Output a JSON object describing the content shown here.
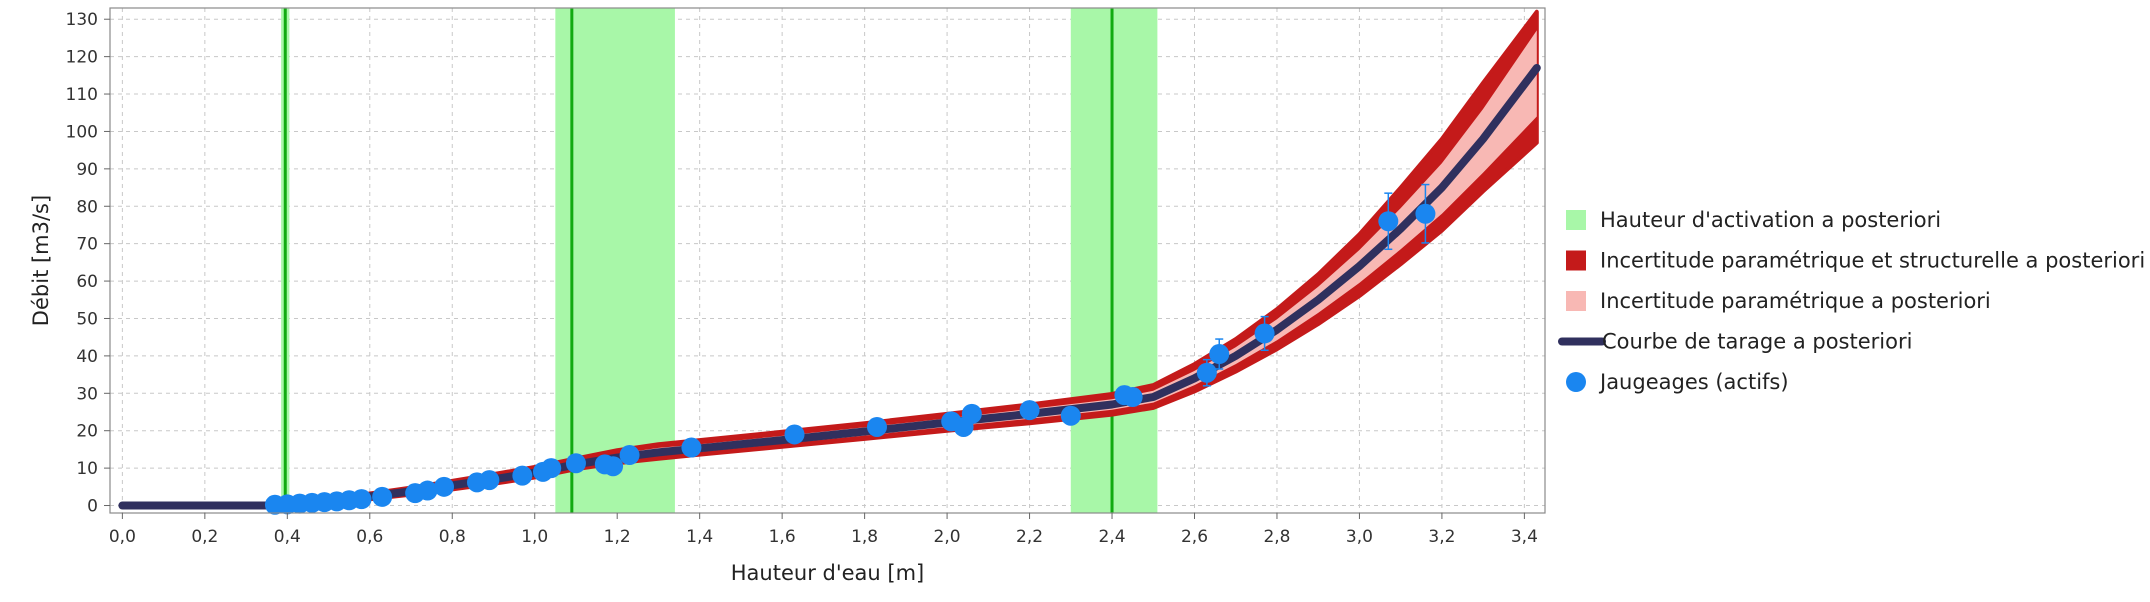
{
  "chart_data": {
    "type": "line",
    "xlabel": "Hauteur d'eau [m]",
    "ylabel": "Débit [m3/s]",
    "xlim": [
      -0.03,
      3.45
    ],
    "ylim": [
      -2,
      133
    ],
    "xticks": [
      "0,0",
      "0,2",
      "0,4",
      "0,6",
      "0,8",
      "1,0",
      "1,2",
      "1,4",
      "1,6",
      "1,8",
      "2,0",
      "2,2",
      "2,4",
      "2,6",
      "2,8",
      "3,0",
      "3,2",
      "3,4"
    ],
    "xtick_values": [
      0,
      0.2,
      0.4,
      0.6,
      0.8,
      1.0,
      1.2,
      1.4,
      1.6,
      1.8,
      2.0,
      2.2,
      2.4,
      2.6,
      2.8,
      3.0,
      3.2,
      3.4
    ],
    "yticks": [
      "0",
      "10",
      "20",
      "30",
      "40",
      "50",
      "60",
      "70",
      "80",
      "90",
      "100",
      "110",
      "120",
      "130"
    ],
    "ytick_values": [
      0,
      10,
      20,
      30,
      40,
      50,
      60,
      70,
      80,
      90,
      100,
      110,
      120,
      130
    ],
    "grid": true,
    "legend_position": "right",
    "colors": {
      "activation": "#a8f7a8",
      "activation_line": "#11aa11",
      "total_uncertainty": "#c41a1a",
      "param_uncertainty": "#f8b8b4",
      "curve": "#30305e",
      "gaugings": "#1a86f0"
    },
    "legend": [
      {
        "key": "activation",
        "symbol": "square",
        "label": "Hauteur d'activation a posteriori"
      },
      {
        "key": "total",
        "symbol": "square",
        "label": "Incertitude paramétrique et structurelle a posteriori"
      },
      {
        "key": "param",
        "symbol": "square",
        "label": "Incertitude paramétrique a posteriori"
      },
      {
        "key": "curve",
        "symbol": "line",
        "label": "Courbe de tarage a posteriori"
      },
      {
        "key": "gaugings",
        "symbol": "circle",
        "label": "Jaugeages (actifs)"
      }
    ],
    "activation_heights": [
      {
        "value": 0.395,
        "low": 0.385,
        "high": 0.405
      },
      {
        "value": 1.09,
        "low": 1.05,
        "high": 1.34
      },
      {
        "value": 2.4,
        "low": 2.3,
        "high": 2.51
      }
    ],
    "rating_curve": {
      "x": [
        0.0,
        0.37,
        0.4,
        0.5,
        0.6,
        0.7,
        0.8,
        0.9,
        1.0,
        1.1,
        1.2,
        1.3,
        1.4,
        1.6,
        1.8,
        2.0,
        2.2,
        2.4,
        2.5,
        2.6,
        2.7,
        2.8,
        2.9,
        3.0,
        3.1,
        3.2,
        3.3,
        3.43
      ],
      "y": [
        0,
        0,
        0.3,
        1.2,
        2.4,
        3.8,
        5.4,
        7.0,
        8.8,
        11.0,
        12.8,
        14.2,
        15.3,
        17.5,
        19.8,
        22.2,
        24.5,
        27.0,
        29.0,
        34.0,
        40.0,
        47.0,
        55.0,
        64.0,
        74.0,
        85.0,
        98.0,
        117.0
      ],
      "param_low": [
        0,
        0,
        0.2,
        1.0,
        2.1,
        3.4,
        4.9,
        6.5,
        8.3,
        10.5,
        12.1,
        13.3,
        14.3,
        16.5,
        18.7,
        21.0,
        23.2,
        25.6,
        27.5,
        32.2,
        37.8,
        44.2,
        51.5,
        59.5,
        68.5,
        78.0,
        89.0,
        104.0
      ],
      "param_high": [
        0,
        0,
        0.4,
        1.4,
        2.7,
        4.2,
        5.9,
        7.6,
        9.4,
        11.7,
        13.8,
        15.4,
        16.4,
        18.6,
        20.9,
        23.3,
        25.8,
        28.4,
        30.7,
        36.0,
        42.3,
        49.8,
        58.5,
        68.3,
        79.5,
        91.5,
        106.0,
        127.0
      ],
      "total_low": [
        0,
        0,
        0.0,
        0.7,
        1.7,
        2.9,
        4.3,
        5.8,
        7.5,
        9.7,
        11.3,
        12.5,
        13.6,
        15.7,
        17.8,
        20.0,
        22.0,
        24.3,
        26.1,
        30.5,
        35.8,
        41.8,
        48.5,
        56.0,
        64.5,
        73.5,
        84.0,
        97.0
      ],
      "total_high": [
        0,
        0,
        0.7,
        1.8,
        3.2,
        4.8,
        6.6,
        8.4,
        10.3,
        12.6,
        14.8,
        16.4,
        17.5,
        19.7,
        22.0,
        24.5,
        27.0,
        29.8,
        32.2,
        37.8,
        44.5,
        52.5,
        61.8,
        72.5,
        85.0,
        98.0,
        113.0,
        132.0
      ]
    },
    "gaugings": {
      "x": [
        0.37,
        0.4,
        0.43,
        0.46,
        0.49,
        0.52,
        0.55,
        0.58,
        0.63,
        0.71,
        0.74,
        0.78,
        0.86,
        0.89,
        0.97,
        1.02,
        1.04,
        1.1,
        1.17,
        1.19,
        1.23,
        1.38,
        1.63,
        1.83,
        2.01,
        2.04,
        2.06,
        2.2,
        2.3,
        2.43,
        2.45,
        2.63,
        2.66,
        2.77,
        3.07,
        3.16
      ],
      "y": [
        0.2,
        0.3,
        0.5,
        0.7,
        0.9,
        1.1,
        1.4,
        1.7,
        2.3,
        3.3,
        4.0,
        5.0,
        6.2,
        6.8,
        8.0,
        9.0,
        10.0,
        11.3,
        11.0,
        10.5,
        13.5,
        15.5,
        19.0,
        21.0,
        22.5,
        21.0,
        24.5,
        25.5,
        24.0,
        29.5,
        29.0,
        35.5,
        40.5,
        46.0,
        76.0,
        78.0
      ],
      "err": [
        0.2,
        0.2,
        0.2,
        0.2,
        0.2,
        0.2,
        0.2,
        0.2,
        0.3,
        0.4,
        0.4,
        0.5,
        0.6,
        0.6,
        0.7,
        0.8,
        0.9,
        1.0,
        1.0,
        1.0,
        1.2,
        1.3,
        1.5,
        1.6,
        1.8,
        1.8,
        2.0,
        2.0,
        2.0,
        2.3,
        2.3,
        3.5,
        4.0,
        4.5,
        7.5,
        7.8
      ]
    }
  }
}
